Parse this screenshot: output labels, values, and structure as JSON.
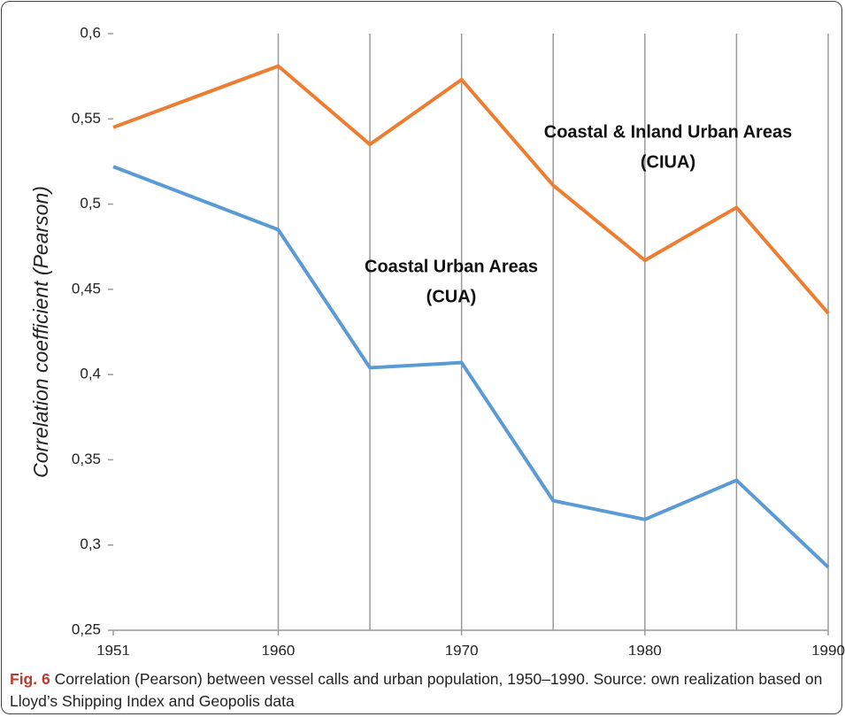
{
  "chart_data": {
    "type": "line",
    "ylabel": "Correlation coefficient (Pearson)",
    "x": [
      1951,
      1960,
      1965,
      1970,
      1975,
      1980,
      1985,
      1990
    ],
    "series": [
      {
        "color": "#ed7d31",
        "values": [
          0.545,
          0.581,
          0.535,
          0.573,
          0.511,
          0.467,
          0.498,
          0.436
        ]
      },
      {
        "color": "#5b9bd5",
        "values": [
          0.522,
          0.485,
          0.404,
          0.407,
          0.326,
          0.315,
          0.338,
          0.287
        ]
      }
    ],
    "xlim": [
      1951,
      1990
    ],
    "xticks": [
      1951,
      1960,
      1970,
      1980,
      1990
    ],
    "xgrid": [
      1960,
      1965,
      1970,
      1975,
      1980,
      1985,
      1990
    ],
    "ylim": [
      0.25,
      0.6
    ],
    "yticks": [
      {
        "value": 0.25,
        "label": "0,25"
      },
      {
        "value": 0.3,
        "label": "0,3"
      },
      {
        "value": 0.35,
        "label": "0,35"
      },
      {
        "value": 0.4,
        "label": "0,4"
      },
      {
        "value": 0.45,
        "label": "0,45"
      },
      {
        "value": 0.5,
        "label": "0,5"
      },
      {
        "value": 0.55,
        "label": "0,55"
      },
      {
        "value": 0.6,
        "label": "0,6"
      }
    ],
    "annotations": [
      {
        "lines": [
          "Coastal & Inland Urban Areas",
          "(CIUA)"
        ]
      },
      {
        "lines": [
          "Coastal Urban Areas",
          "(CUA)"
        ]
      }
    ]
  },
  "caption": {
    "label": "Fig. 6",
    "text": "Correlation (Pearson) between vessel calls and urban population, 1950–1990. Source: own realization based on Lloyd’s Shipping Index and Geopolis data"
  }
}
